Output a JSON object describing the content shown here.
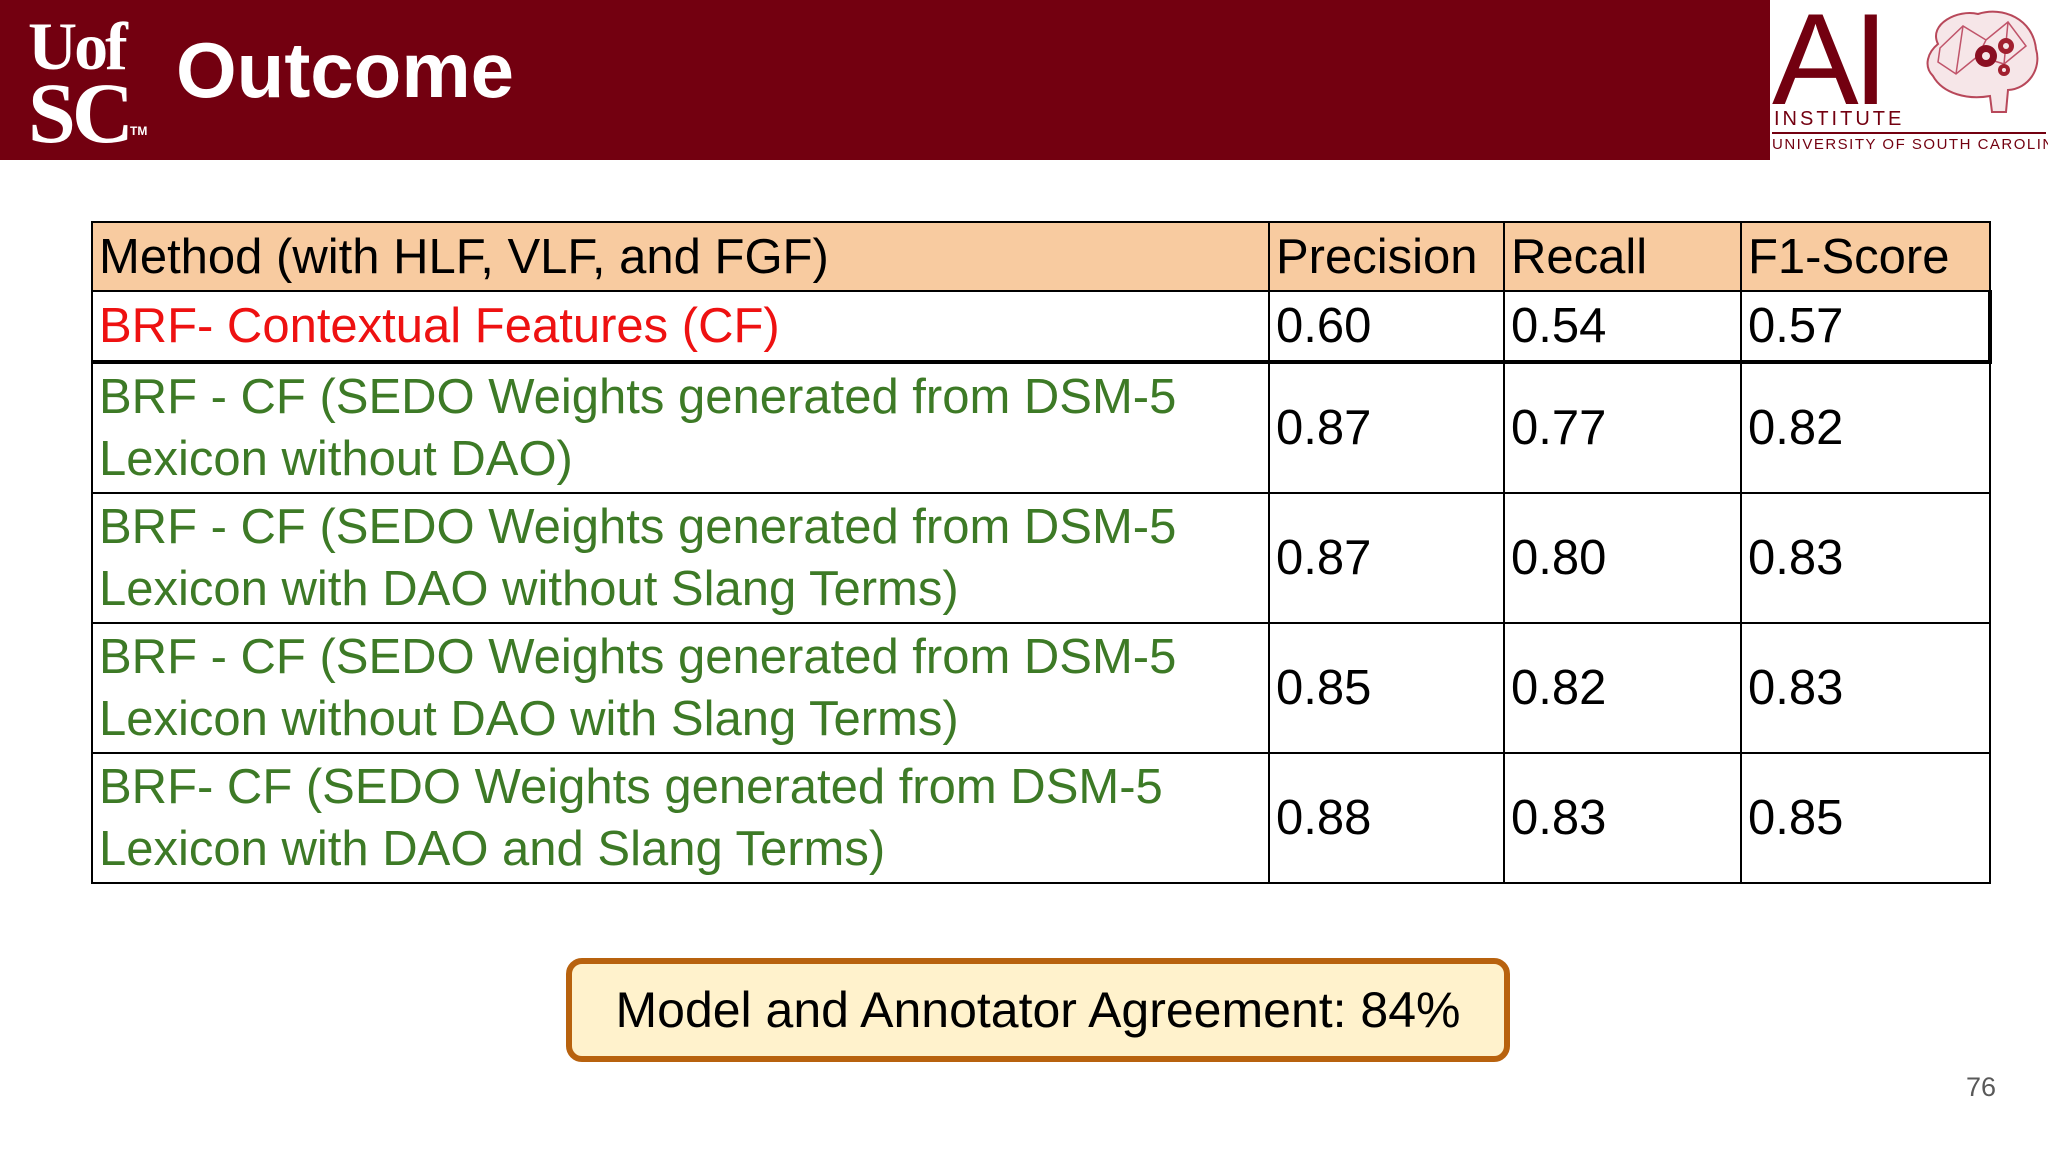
{
  "header": {
    "title": "Outcome",
    "logo_left": {
      "line1": "Uof",
      "line2": "SC",
      "tm": "TM"
    },
    "logo_right": {
      "letters": "AI",
      "institute": "INSTITUTE",
      "university": "UNIVERSITY OF SOUTH CAROLINA"
    },
    "colors": {
      "garnet": "#730010",
      "header_cell": "#f8cba0",
      "red_text": "#ee1111",
      "green_text": "#3d7a26",
      "callout_fill": "#fff2cc",
      "callout_border": "#b8620e"
    }
  },
  "table": {
    "headers": [
      "Method (with HLF, VLF, and FGF)",
      "Precision",
      "Recall",
      "F1-Score"
    ],
    "rows": [
      {
        "method": "BRF-  Contextual Features (CF)",
        "precision": "0.60",
        "recall": "0.54",
        "f1": "0.57"
      },
      {
        "method_line1": "BRF - CF (SEDO Weights generated from DSM-5",
        "method_line2": "Lexicon without DAO)",
        "precision": "0.87",
        "recall": "0.77",
        "f1": "0.82"
      },
      {
        "method_line1": "BRF - CF (SEDO Weights generated from DSM-5",
        "method_line2": "Lexicon with DAO without Slang Terms)",
        "precision": "0.87",
        "recall": "0.80",
        "f1": "0.83"
      },
      {
        "method_line1": "BRF - CF (SEDO Weights generated from DSM-5",
        "method_line2": "Lexicon without DAO with Slang Terms)",
        "precision": "0.85",
        "recall": "0.82",
        "f1": "0.83"
      },
      {
        "method_line1": "BRF- CF (SEDO Weights generated from DSM-5",
        "method_line2": "Lexicon with DAO and Slang Terms)",
        "precision": "0.88",
        "recall": "0.83",
        "f1": "0.85"
      }
    ]
  },
  "callout": {
    "text": "Model and Annotator Agreement: 84%"
  },
  "page_number": "76"
}
